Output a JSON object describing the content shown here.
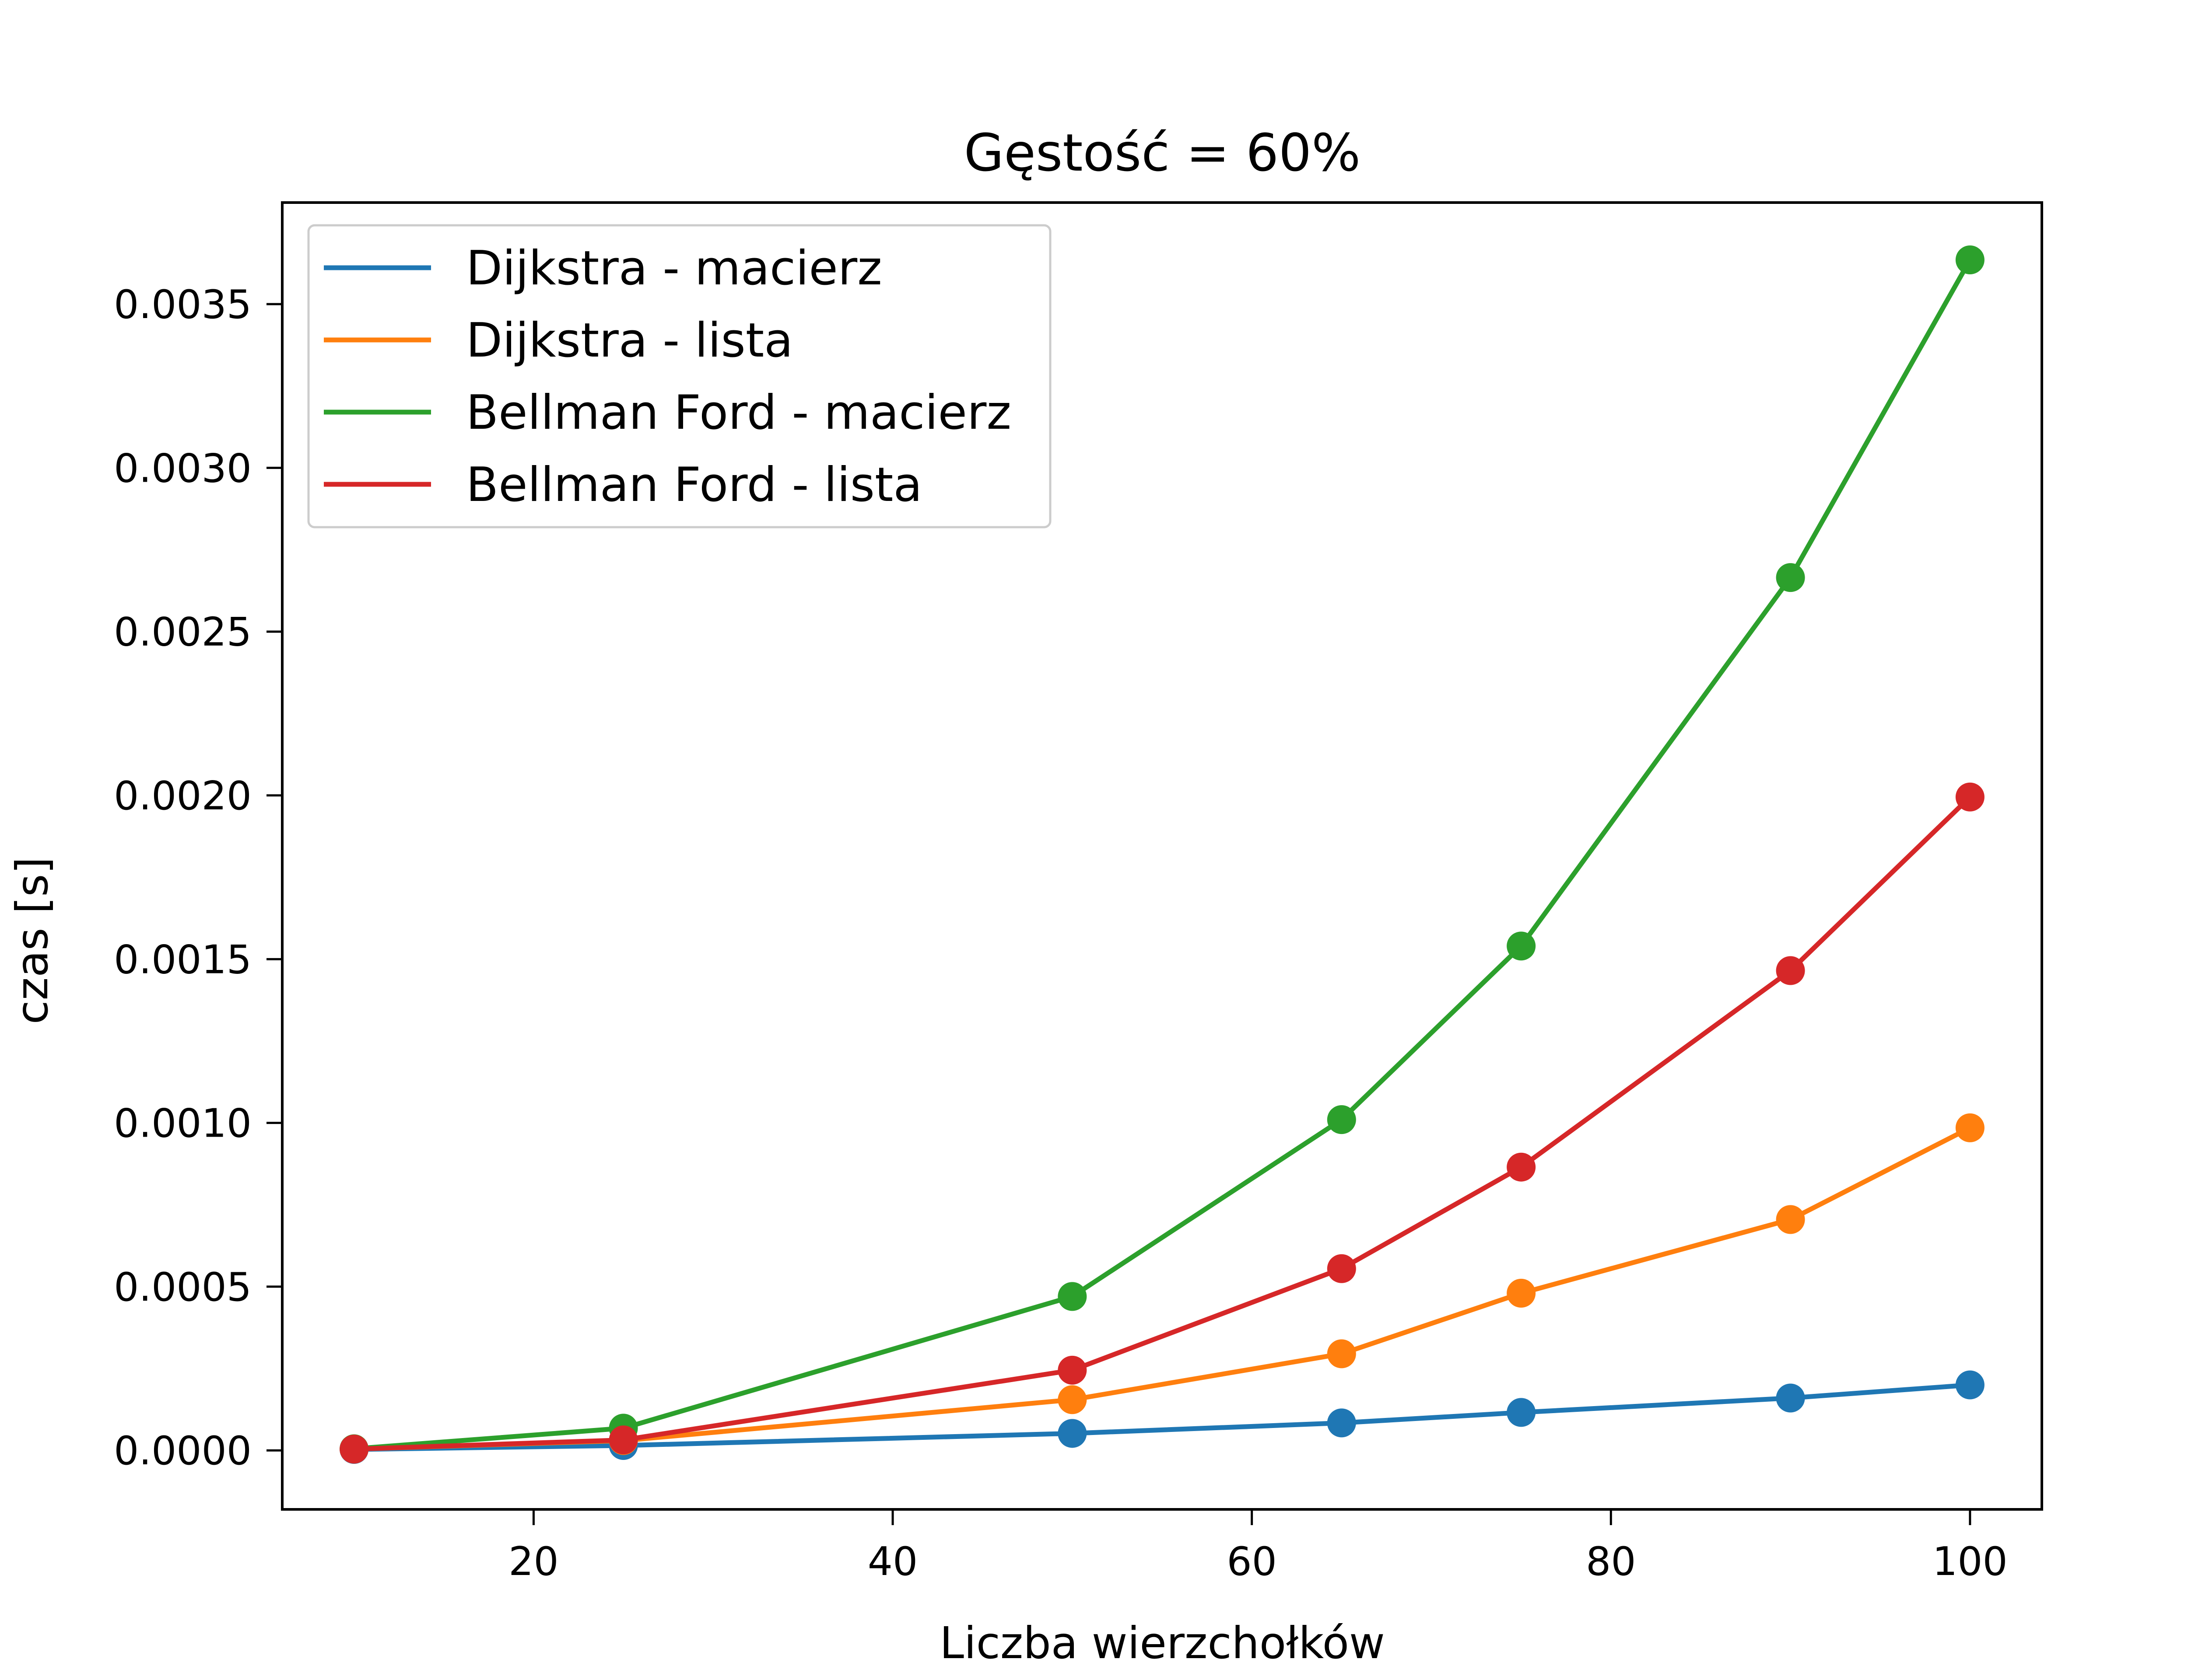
{
  "chart_data": {
    "type": "line",
    "title": "Gęstość = 60%",
    "xlabel": "Liczba wierzchołków",
    "ylabel": "czas [s]",
    "xlim": [
      6,
      104
    ],
    "ylim": [
      -0.00018,
      0.00381
    ],
    "xticks": [
      20,
      40,
      60,
      80,
      100
    ],
    "xtick_labels": [
      "20",
      "40",
      "60",
      "80",
      "100"
    ],
    "yticks": [
      0,
      0.0005,
      0.001,
      0.0015,
      0.002,
      0.0025,
      0.003,
      0.0035
    ],
    "ytick_labels": [
      "0.0000",
      "0.0005",
      "0.0010",
      "0.0015",
      "0.0020",
      "0.0025",
      "0.0030",
      "0.0035"
    ],
    "grid": false,
    "legend_position": "upper-left",
    "x": [
      10,
      25,
      50,
      65,
      75,
      90,
      100
    ],
    "series": [
      {
        "name": "Dijkstra - macierz",
        "color": "#1f77b4",
        "values": [
          3e-06,
          1.5e-05,
          5.2e-05,
          8.4e-05,
          0.000116,
          0.00016,
          0.0002
        ]
      },
      {
        "name": "Dijkstra - lista",
        "color": "#ff7f0e",
        "values": [
          4e-06,
          3e-05,
          0.000155,
          0.000295,
          0.00048,
          0.000705,
          0.000985
        ]
      },
      {
        "name": "Bellman Ford - macierz",
        "color": "#2ca02c",
        "values": [
          5e-06,
          6.8e-05,
          0.00047,
          0.00101,
          0.00154,
          0.002665,
          0.003635
        ]
      },
      {
        "name": "Bellman Ford - lista",
        "color": "#d62728",
        "values": [
          4e-06,
          3.2e-05,
          0.000245,
          0.000555,
          0.000865,
          0.001465,
          0.001995
        ]
      }
    ]
  }
}
